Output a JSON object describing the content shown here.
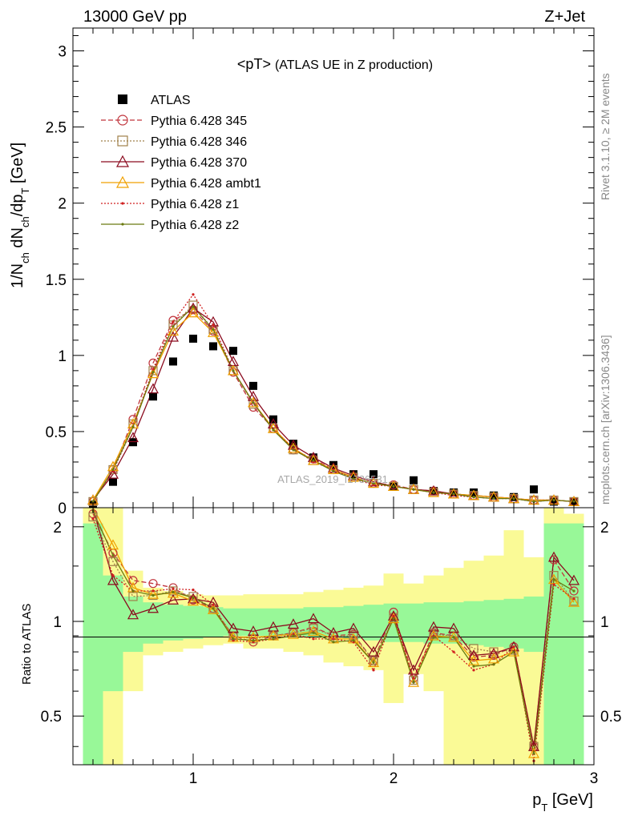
{
  "header": {
    "energy_label": "13000 GeV pp",
    "process_label": "Z+Jet"
  },
  "side_labels": {
    "rivet": "Rivet 3.1.10, ≥ 2M events",
    "mcplots": "mcplots.cern.ch [arXiv:1306.3436]"
  },
  "watermark": "ATLAS_2019_I1736531",
  "chart_data": [
    {
      "type": "scatter",
      "panel": "main",
      "title_main": "<pT>",
      "title_sub": "(ATLAS UE in Z production)",
      "ylabel": "1/N_ch dN_ch/dp_T [GeV]",
      "xlabel": "p_T [GeV]",
      "xlim": [
        0.4,
        3.0
      ],
      "ylim": [
        0,
        3.15
      ],
      "x": [
        0.5,
        0.6,
        0.7,
        0.8,
        0.9,
        1.0,
        1.1,
        1.2,
        1.3,
        1.4,
        1.5,
        1.6,
        1.7,
        1.8,
        1.9,
        2.0,
        2.1,
        2.2,
        2.3,
        2.4,
        2.5,
        2.6,
        2.7,
        2.8,
        2.9
      ],
      "x_ticks": [
        "1",
        "2",
        "3"
      ],
      "y_ticks": [
        "0",
        "0.5",
        "1",
        "1.5",
        "2",
        "2.5",
        "3"
      ],
      "legend_position": "top-left",
      "series": [
        {
          "name": "ATLAS",
          "color": "#000000",
          "marker": "square",
          "line": "none",
          "values": [
            0.02,
            0.17,
            0.43,
            0.73,
            0.96,
            1.11,
            1.06,
            1.03,
            0.8,
            0.58,
            0.42,
            0.33,
            0.28,
            0.22,
            0.22,
            0.14,
            0.18,
            0.11,
            0.1,
            0.1,
            0.08,
            0.07,
            0.12,
            0.04,
            0.04
          ]
        },
        {
          "name": "Pythia 6.428 345",
          "color": "#c0343c",
          "marker": "circle-open",
          "line": "dashed",
          "values": [
            0.04,
            0.25,
            0.58,
            0.95,
            1.23,
            1.3,
            1.16,
            0.89,
            0.66,
            0.52,
            0.38,
            0.32,
            0.25,
            0.2,
            0.16,
            0.15,
            0.12,
            0.11,
            0.09,
            0.08,
            0.07,
            0.06,
            0.05,
            0.05,
            0.04
          ]
        },
        {
          "name": "Pythia 6.428 346",
          "color": "#a0804a",
          "marker": "square-open",
          "line": "dotted",
          "values": [
            0.04,
            0.25,
            0.55,
            0.9,
            1.2,
            1.33,
            1.17,
            0.9,
            0.68,
            0.52,
            0.38,
            0.31,
            0.25,
            0.2,
            0.16,
            0.14,
            0.12,
            0.1,
            0.09,
            0.08,
            0.07,
            0.06,
            0.05,
            0.05,
            0.04
          ]
        },
        {
          "name": "Pythia 6.428 370",
          "color": "#8b0a1e",
          "marker": "triangle-open",
          "line": "solid",
          "values": [
            0.05,
            0.22,
            0.46,
            0.78,
            1.12,
            1.31,
            1.22,
            0.96,
            0.73,
            0.55,
            0.41,
            0.33,
            0.26,
            0.21,
            0.17,
            0.14,
            0.12,
            0.11,
            0.09,
            0.08,
            0.07,
            0.06,
            0.05,
            0.05,
            0.04
          ]
        },
        {
          "name": "Pythia 6.428 ambt1",
          "color": "#f0a000",
          "marker": "triangle-open",
          "line": "solid",
          "values": [
            0.05,
            0.27,
            0.55,
            0.88,
            1.16,
            1.28,
            1.15,
            0.9,
            0.69,
            0.52,
            0.39,
            0.31,
            0.25,
            0.2,
            0.16,
            0.14,
            0.12,
            0.1,
            0.09,
            0.08,
            0.07,
            0.06,
            0.05,
            0.05,
            0.04
          ]
        },
        {
          "name": "Pythia 6.428 z1",
          "color": "#d02020",
          "marker": "dot",
          "line": "dotted",
          "values": [
            0.04,
            0.24,
            0.53,
            0.91,
            1.22,
            1.4,
            1.2,
            0.9,
            0.69,
            0.51,
            0.39,
            0.3,
            0.25,
            0.19,
            0.15,
            0.14,
            0.12,
            0.1,
            0.08,
            0.07,
            0.06,
            0.06,
            0.04,
            0.05,
            0.04
          ]
        },
        {
          "name": "Pythia 6.428 z2",
          "color": "#6b7a10",
          "marker": "dot",
          "line": "solid",
          "values": [
            0.04,
            0.25,
            0.53,
            0.89,
            1.19,
            1.32,
            1.17,
            0.9,
            0.69,
            0.51,
            0.38,
            0.31,
            0.24,
            0.19,
            0.16,
            0.14,
            0.12,
            0.1,
            0.09,
            0.07,
            0.06,
            0.06,
            0.04,
            0.05,
            0.04
          ]
        }
      ]
    },
    {
      "type": "line",
      "panel": "ratio",
      "ylabel": "Ratio to ATLAS",
      "xlim": [
        0.4,
        3.0
      ],
      "ylim": [
        0.35,
        2.3
      ],
      "y_ticks": [
        "0.5",
        "1",
        "2"
      ],
      "reference_line": 1,
      "band_colors": {
        "inner": "#98f898",
        "outer": "#fafa96"
      },
      "bands": {
        "inner_lo": [
          0.35,
          0.6,
          0.8,
          0.85,
          0.87,
          0.88,
          0.89,
          0.9,
          0.9,
          0.9,
          0.9,
          0.89,
          0.89,
          0.88,
          0.87,
          0.86,
          0.86,
          0.85,
          0.85,
          0.84,
          0.83,
          0.82,
          0.8,
          0.35,
          0.35
        ],
        "inner_hi": [
          2.05,
          1.4,
          1.2,
          1.15,
          1.13,
          1.12,
          1.11,
          1.1,
          1.1,
          1.1,
          1.1,
          1.11,
          1.11,
          1.12,
          1.13,
          1.14,
          1.14,
          1.15,
          1.15,
          1.16,
          1.17,
          1.18,
          1.2,
          2.05,
          2.05
        ],
        "outer_lo": [
          0.35,
          0.35,
          0.6,
          0.78,
          0.8,
          0.82,
          0.84,
          0.85,
          0.82,
          0.82,
          0.8,
          0.78,
          0.74,
          0.72,
          0.7,
          0.55,
          0.68,
          0.6,
          0.35,
          0.35,
          0.35,
          0.35,
          0.35,
          0.35,
          0.35
        ],
        "outer_hi": [
          2.3,
          2.3,
          1.45,
          1.28,
          1.25,
          1.22,
          1.21,
          1.21,
          1.22,
          1.22,
          1.22,
          1.24,
          1.26,
          1.28,
          1.3,
          1.42,
          1.32,
          1.4,
          1.48,
          1.56,
          1.62,
          1.95,
          1.6,
          2.3,
          2.2
        ]
      },
      "series": [
        {
          "name": "Pythia 6.428 345",
          "color": "#c0343c",
          "line": "dashed",
          "marker": "circle-open",
          "values": [
            2.2,
            1.65,
            1.35,
            1.32,
            1.28,
            1.17,
            1.1,
            0.9,
            0.86,
            0.9,
            0.92,
            0.96,
            0.9,
            0.91,
            0.75,
            1.07,
            0.66,
            0.92,
            0.9,
            0.77,
            0.78,
            0.83,
            0.4,
            1.57,
            1.25
          ]
        },
        {
          "name": "Pythia 6.428 346",
          "color": "#a0804a",
          "line": "dotted",
          "marker": "square-open",
          "values": [
            2.15,
            1.55,
            1.2,
            1.21,
            1.25,
            1.2,
            1.1,
            0.9,
            0.88,
            0.9,
            0.92,
            0.95,
            0.9,
            0.9,
            0.75,
            1.03,
            0.65,
            0.91,
            0.9,
            0.82,
            0.8,
            0.81,
            0.4,
            1.4,
            1.16
          ]
        },
        {
          "name": "Pythia 6.428 370",
          "color": "#8b0a1e",
          "line": "solid",
          "marker": "triangle-open",
          "values": [
            2.35,
            1.35,
            1.05,
            1.1,
            1.17,
            1.18,
            1.15,
            0.95,
            0.93,
            0.96,
            0.98,
            1.02,
            0.92,
            0.95,
            0.8,
            1.04,
            0.7,
            0.96,
            0.95,
            0.78,
            0.79,
            0.83,
            0.4,
            1.6,
            1.35
          ]
        },
        {
          "name": "Pythia 6.428 ambt1",
          "color": "#f0a000",
          "line": "solid",
          "marker": "triangle-open",
          "values": [
            2.3,
            1.75,
            1.28,
            1.22,
            1.23,
            1.16,
            1.09,
            0.89,
            0.89,
            0.9,
            0.91,
            0.93,
            0.88,
            0.88,
            0.74,
            1.02,
            0.64,
            0.9,
            0.89,
            0.75,
            0.76,
            0.8,
            0.38,
            1.36,
            1.15
          ]
        },
        {
          "name": "Pythia 6.428 z1",
          "color": "#d02020",
          "line": "dotted",
          "marker": "dot",
          "values": [
            2.12,
            1.4,
            1.25,
            1.25,
            1.27,
            1.26,
            1.13,
            0.87,
            0.86,
            0.88,
            0.91,
            0.88,
            0.88,
            0.86,
            0.7,
            1.04,
            0.66,
            0.9,
            0.8,
            0.7,
            0.73,
            0.83,
            0.36,
            1.31,
            1.18
          ]
        },
        {
          "name": "Pythia 6.428 z2",
          "color": "#6b7a10",
          "line": "solid",
          "marker": "dot",
          "values": [
            2.25,
            1.62,
            1.25,
            1.21,
            1.24,
            1.19,
            1.1,
            0.88,
            0.87,
            0.88,
            0.9,
            0.92,
            0.86,
            0.87,
            0.74,
            1.02,
            0.64,
            0.89,
            0.89,
            0.72,
            0.73,
            0.8,
            0.38,
            1.36,
            1.25
          ]
        }
      ]
    }
  ]
}
